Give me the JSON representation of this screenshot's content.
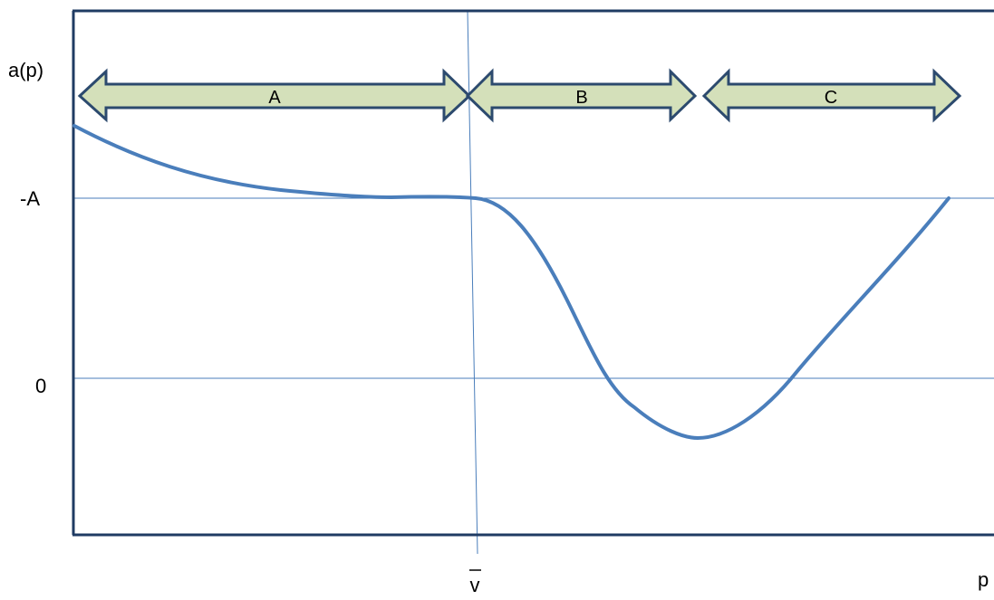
{
  "labels": {
    "y_axis": "a(p)",
    "x_axis": "p",
    "tick_neg_a": "-A",
    "tick_zero": "0",
    "vbar": "v"
  },
  "regions": [
    {
      "label": "A"
    },
    {
      "label": "B"
    },
    {
      "label": "C"
    }
  ],
  "colors": {
    "axis": "#1f3b63",
    "gridline": "#4a7ebb",
    "curve": "#4a7ebb",
    "arrow_fill": "#d4e0ba",
    "arrow_stroke": "#2c4a6e"
  }
}
